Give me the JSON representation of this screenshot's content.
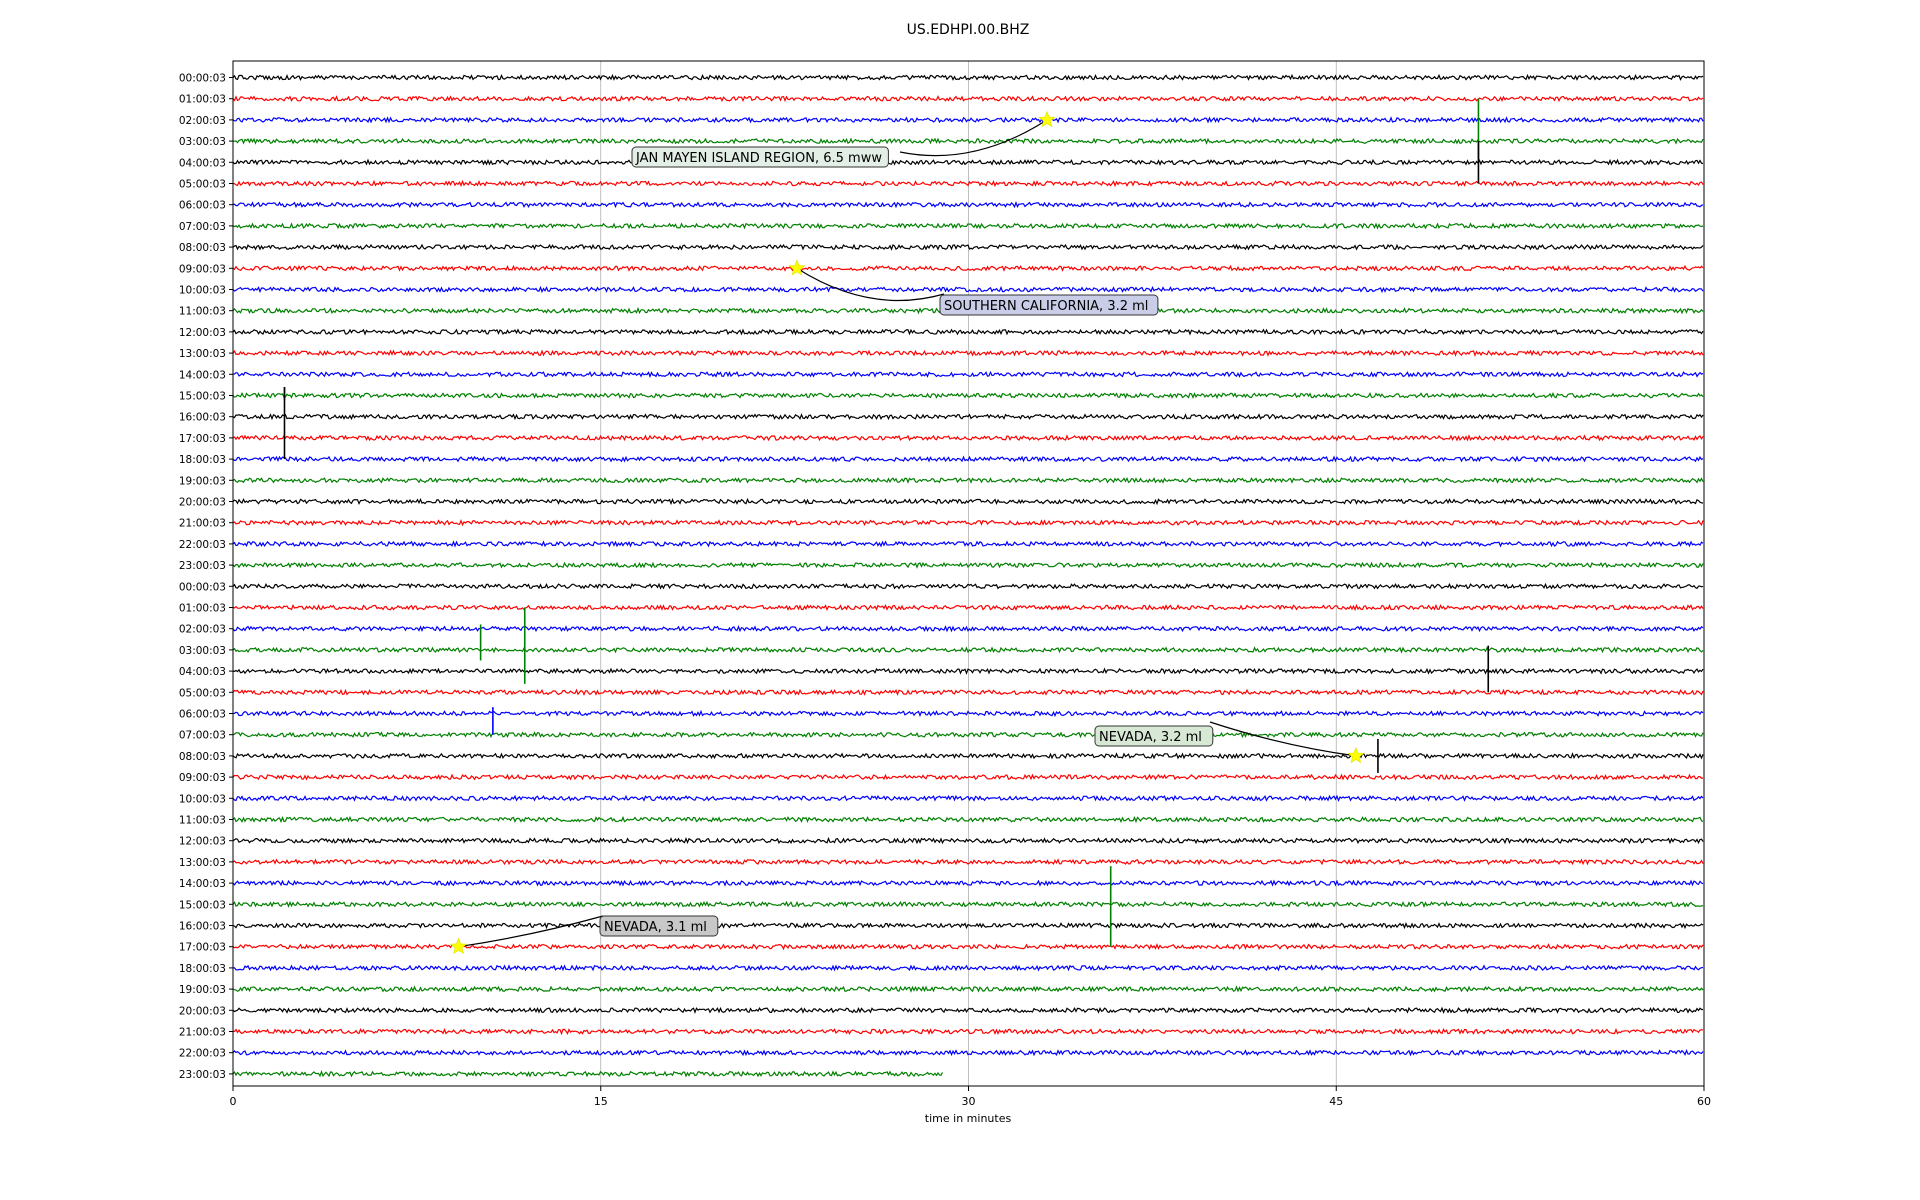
{
  "chart_data": {
    "type": "line",
    "title": "US.EDHPI.00.BHZ",
    "xlabel": "time in minutes",
    "ylabel": "",
    "xlim": [
      0,
      60
    ],
    "x_ticks": [
      0,
      15,
      30,
      45,
      60
    ],
    "grid": "vertical",
    "colors": [
      "#000000",
      "#ff0000",
      "#0000ff",
      "#008000"
    ],
    "row_labels": [
      "00:00:03",
      "01:00:03",
      "02:00:03",
      "03:00:03",
      "04:00:03",
      "05:00:03",
      "06:00:03",
      "07:00:03",
      "08:00:03",
      "09:00:03",
      "10:00:03",
      "11:00:03",
      "12:00:03",
      "13:00:03",
      "14:00:03",
      "15:00:03",
      "16:00:03",
      "17:00:03",
      "18:00:03",
      "19:00:03",
      "20:00:03",
      "21:00:03",
      "22:00:03",
      "23:00:03",
      "00:00:03",
      "01:00:03",
      "02:00:03",
      "03:00:03",
      "04:00:03",
      "05:00:03",
      "06:00:03",
      "07:00:03",
      "08:00:03",
      "09:00:03",
      "10:00:03",
      "11:00:03",
      "12:00:03",
      "13:00:03",
      "14:00:03",
      "15:00:03",
      "16:00:03",
      "17:00:03",
      "18:00:03",
      "19:00:03",
      "20:00:03",
      "21:00:03",
      "22:00:03",
      "23:00:03"
    ],
    "last_trace_end_minute": 29,
    "spikes": [
      {
        "row": 3,
        "minute": 50.8,
        "up": 2.0,
        "down": 1.0
      },
      {
        "row": 4,
        "minute": 50.8,
        "up": 1.0,
        "down": 1.0
      },
      {
        "row": 15,
        "minute": 2.1,
        "up": 0.4,
        "down": 0.2
      },
      {
        "row": 16,
        "minute": 2.1,
        "up": 1.4,
        "down": 2.0
      },
      {
        "row": 27,
        "minute": 10.1,
        "up": 1.2,
        "down": 0.5
      },
      {
        "row": 27,
        "minute": 11.9,
        "up": 2.0,
        "down": 1.6
      },
      {
        "row": 28,
        "minute": 51.2,
        "up": 1.2,
        "down": 1.0
      },
      {
        "row": 30,
        "minute": 10.6,
        "up": 0.3,
        "down": 1.0
      },
      {
        "row": 32,
        "minute": 46.7,
        "up": 0.8,
        "down": 0.8
      },
      {
        "row": 39,
        "minute": 35.8,
        "up": 1.8,
        "down": 2.0
      }
    ],
    "events": [
      {
        "label": "JAN MAYEN ISLAND REGION, 6.5 mww",
        "row": 2,
        "minute": 33.2,
        "box_color": "#e3eee6"
      },
      {
        "label": "SOUTHERN CALIFORNIA, 3.2 ml",
        "row": 9,
        "minute": 23.0,
        "box_color": "#c9cde8"
      },
      {
        "label": "NEVADA, 3.2 ml",
        "row": 32,
        "minute": 45.8,
        "box_color": "#d7e8d5"
      },
      {
        "label": "NEVADA, 3.1 ml",
        "row": 41,
        "minute": 9.2,
        "box_color": "#c8c8c8"
      }
    ]
  }
}
